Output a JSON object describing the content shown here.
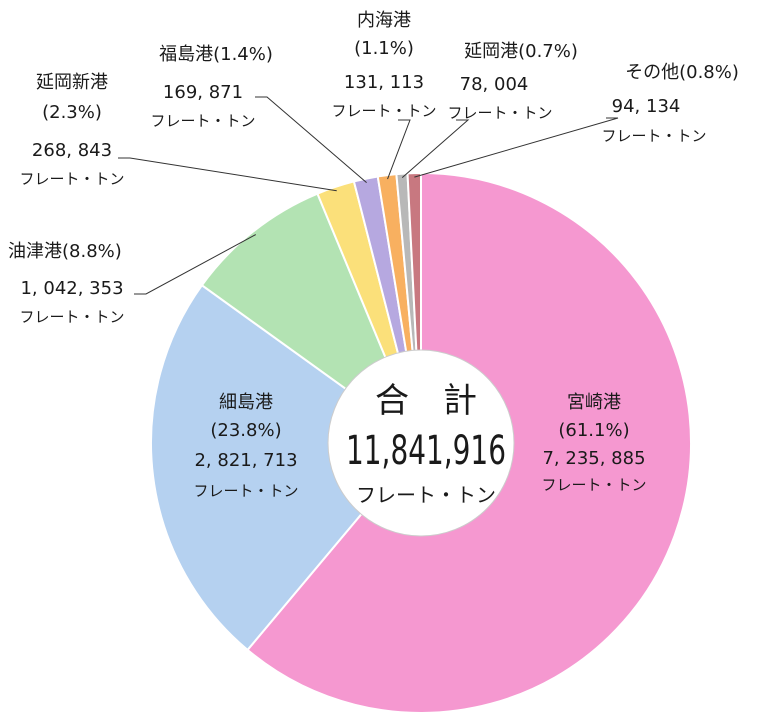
{
  "chart_data": {
    "type": "pie",
    "center": {
      "title": "合　計",
      "total": "11,841,916",
      "unit": "フレート・トン"
    },
    "slices": [
      {
        "name": "宮崎港",
        "percent_label": "(61.1%)",
        "value": 7235885,
        "value_label": "7, 235, 885",
        "unit": "フレート・トン",
        "color": "#f598d0"
      },
      {
        "name": "細島港",
        "percent_label": "(23.8%)",
        "value": 2821713,
        "value_label": "2, 821, 713",
        "unit": "フレート・トン",
        "color": "#b5d1f0"
      },
      {
        "name": "油津港",
        "percent_label": "(8.8%)",
        "value": 1042353,
        "value_label": "1, 042, 353",
        "unit": "フレート・トン",
        "color": "#b3e3b3"
      },
      {
        "name": "延岡新港",
        "percent_label": "(2.3%)",
        "value": 268843,
        "value_label": "268, 843",
        "unit": "フレート・トン",
        "color": "#fbe07a"
      },
      {
        "name": "福島港",
        "percent_label": "(1.4%)",
        "value": 169871,
        "value_label": "169, 871",
        "unit": "フレート・トン",
        "color": "#b6a8e0"
      },
      {
        "name": "内海港",
        "percent_label": "(1.1%)",
        "value": 131113,
        "value_label": "131, 113",
        "unit": "フレート・トン",
        "color": "#f8b060"
      },
      {
        "name": "延岡港",
        "percent_label": "(0.7%)",
        "value": 78004,
        "value_label": "78, 004",
        "unit": "フレート・トン",
        "color": "#b8b8b8"
      },
      {
        "name": "その他",
        "percent_label": "(0.8%)",
        "value": 94134,
        "value_label": "94, 134",
        "unit": "フレート・トン",
        "color": "#c87880"
      }
    ]
  }
}
